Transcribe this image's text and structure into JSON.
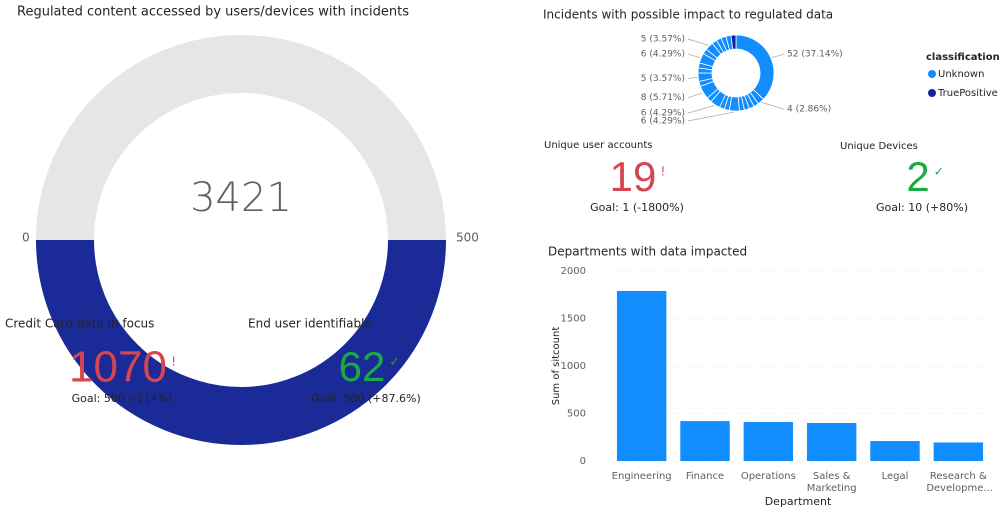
{
  "chart_data": [
    {
      "type": "gauge",
      "title": "Regulated content accessed by users/devices with incidents",
      "value": 3421,
      "min": 0,
      "max": 500,
      "color": "#1a2a96"
    },
    {
      "type": "kpi",
      "title": "Credit Card data in focus",
      "value": 1070,
      "indicator": "!",
      "goal_label": "Goal: 500 (-114%)",
      "color": "#d64550"
    },
    {
      "type": "kpi",
      "title": "End user identifiable",
      "value": 62,
      "indicator": "✓",
      "goal_label": "Goal: 500 (+87.6%)",
      "color": "#1aab40"
    },
    {
      "type": "pie",
      "title": "Incidents with possible impact to regulated data",
      "legend_title": "classification",
      "series": [
        {
          "name": "Unknown",
          "color": "#118dff",
          "values": [
            52,
            4,
            3,
            3,
            3,
            3,
            6,
            3,
            3,
            6,
            3,
            8,
            3,
            5,
            3,
            3,
            6,
            3,
            5,
            3,
            3,
            3,
            3
          ],
          "value_labels": [
            "52 (37.14%)",
            "4 (2.86%)",
            null,
            null,
            null,
            null,
            "6 (4.29%)",
            null,
            null,
            "6 (4.29%)",
            null,
            "8 (5.71%)",
            null,
            "5 (3.57%)",
            null,
            null,
            "6 (4.29%)",
            null,
            "5 (3.57%)",
            null,
            null,
            null,
            null
          ]
        },
        {
          "name": "TruePositive",
          "color": "#12239e",
          "values": [
            3
          ],
          "value_labels": [
            null
          ]
        }
      ]
    },
    {
      "type": "kpi",
      "title": "Unique user accounts",
      "value": 19,
      "indicator": "!",
      "goal_label": "Goal: 1 (-1800%)",
      "color": "#d64550"
    },
    {
      "type": "kpi",
      "title": "Unique Devices",
      "value": 2,
      "indicator": "✓",
      "goal_label": "Goal: 10 (+80%)",
      "color": "#1aab40"
    },
    {
      "type": "bar",
      "title": "Departments with data impacted",
      "x_label": "Department",
      "y_label": "Sum of sitcount",
      "categories": [
        "Engineering",
        "Finance",
        "Operations",
        "Sales & Marketing",
        "Legal",
        "Research & Developme..."
      ],
      "values": [
        1790,
        420,
        410,
        400,
        210,
        195
      ],
      "color": "#118dff",
      "ylim": [
        0,
        2000
      ],
      "yticks": [
        0,
        500,
        1000,
        1500,
        2000
      ],
      "grid": true
    }
  ]
}
